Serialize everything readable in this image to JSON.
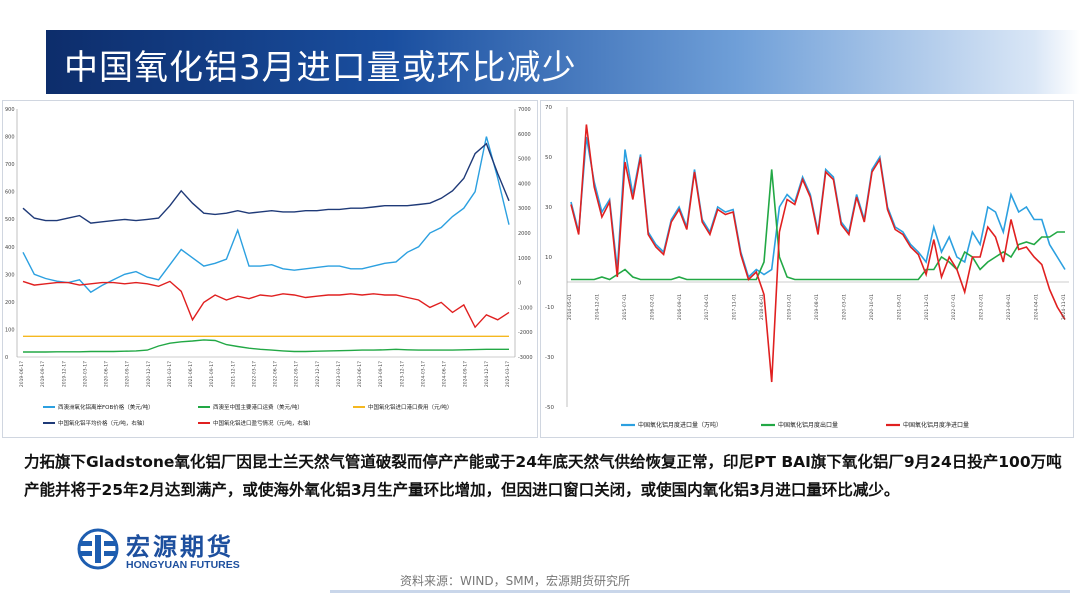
{
  "slide": {
    "title": "中国氧化铝3月进口量或环比减少",
    "body": "力拓旗下Gladstone氧化铝厂因昆士兰天然气管道破裂而停产产能或于24年底天然气供给恢复正常，印尼PT BAI旗下氧化铝厂9月24日投产100万吨产能并将于25年2月达到满产，或使海外氧化铝3月生产量环比增加，但因进口窗口关闭，或使国内氧化铝3月进口量环比减少。",
    "logo_cn": "宏源期货",
    "logo_en": "HONGYUAN FUTURES",
    "source": "资料来源：WIND，SMM，宏源期货研究所"
  },
  "colors": {
    "light_blue": "#2ca0e0",
    "navy": "#1f3a78",
    "green": "#22a845",
    "red": "#e02020",
    "orange": "#f5b820"
  },
  "chart_data": [
    {
      "type": "line",
      "left_axis": {
        "ylim": [
          0,
          900
        ],
        "ticks": [
          "0",
          "100",
          "200",
          "300",
          "400",
          "500",
          "600",
          "700",
          "800",
          "900"
        ]
      },
      "right_axis": {
        "ylim": [
          -3000,
          7000
        ],
        "ticks": [
          "-3000",
          "-2000",
          "-1000",
          "0",
          "1000",
          "2000",
          "3000",
          "4000",
          "5000",
          "6000",
          "7000"
        ]
      },
      "series": [
        {
          "name": "西澳洲氧化铝离岸FOB价格（美元/吨）",
          "axis": "left",
          "color": "#2ca0e0",
          "values": [
            380,
            300,
            285,
            275,
            270,
            280,
            235,
            260,
            280,
            300,
            310,
            290,
            280,
            335,
            390,
            360,
            330,
            340,
            355,
            460,
            330,
            330,
            335,
            320,
            315,
            320,
            325,
            330,
            330,
            320,
            320,
            330,
            340,
            345,
            380,
            400,
            450,
            470,
            510,
            540,
            600,
            800,
            650,
            480
          ]
        },
        {
          "name": "西澳至中国主要港口运费（美元/吨）",
          "axis": "left",
          "color": "#22a845",
          "values": [
            18,
            18,
            18,
            19,
            19,
            19,
            20,
            20,
            20,
            21,
            22,
            25,
            40,
            50,
            55,
            58,
            62,
            60,
            45,
            38,
            32,
            28,
            25,
            22,
            20,
            20,
            21,
            22,
            23,
            24,
            25,
            25,
            26,
            28,
            26,
            25,
            25,
            25,
            25,
            26,
            27,
            28,
            28,
            28
          ]
        },
        {
          "name": "中国氧化铝进口港口费用（元/吨）",
          "axis": "left",
          "color": "#f5b820",
          "values": [
            75,
            75,
            75,
            75,
            75,
            75,
            75,
            75,
            75,
            75,
            75,
            75,
            75,
            75,
            75,
            75,
            75,
            75,
            75,
            75,
            75,
            75,
            75,
            75,
            75,
            75,
            75,
            75,
            75,
            75,
            75,
            75,
            75,
            75,
            75,
            75,
            75,
            75,
            75,
            75,
            75,
            75,
            75,
            75
          ]
        },
        {
          "name": "中国氧化铝平均价格（元/吨，右轴）",
          "axis": "right",
          "color": "#1f3a78",
          "values": [
            3000,
            2600,
            2500,
            2500,
            2600,
            2700,
            2400,
            2450,
            2500,
            2550,
            2500,
            2550,
            2600,
            3100,
            3700,
            3200,
            2800,
            2750,
            2800,
            2900,
            2800,
            2850,
            2900,
            2850,
            2850,
            2900,
            2900,
            2950,
            2950,
            3000,
            3000,
            3050,
            3100,
            3100,
            3100,
            3150,
            3200,
            3400,
            3700,
            4200,
            5200,
            5600,
            4400,
            3300
          ]
        },
        {
          "name": "中国氧化铝进口盈亏情况（元/吨，右轴）",
          "axis": "right",
          "color": "#e02020",
          "values": [
            50,
            -100,
            -50,
            0,
            0,
            -100,
            -50,
            0,
            0,
            -50,
            0,
            -50,
            -150,
            50,
            -350,
            -1500,
            -800,
            -500,
            -700,
            -550,
            -650,
            -500,
            -550,
            -450,
            -500,
            -600,
            -550,
            -500,
            -500,
            -450,
            -500,
            -450,
            -500,
            -500,
            -600,
            -700,
            -1000,
            -800,
            -1200,
            -900,
            -1800,
            -1300,
            -1500,
            -1200
          ]
        }
      ],
      "x_labels": [
        "2019-06-17",
        "2019-09-17",
        "2019-12-17",
        "2020-03-17",
        "2020-06-17",
        "2020-09-17",
        "2020-12-17",
        "2021-03-17",
        "2021-06-17",
        "2021-09-17",
        "2021-12-17",
        "2022-03-17",
        "2022-06-17",
        "2022-09-17",
        "2022-12-17",
        "2023-03-17",
        "2023-06-17",
        "2023-09-17",
        "2023-12-17",
        "2024-03-17",
        "2024-06-17",
        "2024-09-17",
        "2024-12-17",
        "2025-03-17"
      ],
      "grid": false,
      "legend_placement": "bottom"
    },
    {
      "type": "line",
      "ylim": [
        -50,
        70
      ],
      "y_ticks": [
        "-50",
        "-30",
        "-10",
        "10",
        "30",
        "50",
        "70"
      ],
      "series": [
        {
          "name": "中国氧化铝月度进口量（万吨）",
          "color": "#2ca0e0",
          "values": [
            32,
            20,
            58,
            40,
            28,
            33,
            5,
            53,
            35,
            51,
            20,
            15,
            12,
            25,
            30,
            22,
            45,
            25,
            20,
            30,
            28,
            29,
            12,
            2,
            5,
            3,
            5,
            30,
            35,
            32,
            42,
            35,
            20,
            45,
            42,
            24,
            20,
            35,
            25,
            45,
            50,
            30,
            22,
            20,
            15,
            12,
            8,
            22,
            12,
            18,
            10,
            8,
            20,
            15,
            30,
            28,
            20,
            35,
            28,
            30,
            25,
            25,
            15,
            10,
            5
          ]
        },
        {
          "name": "中国氧化铝月度出口量",
          "color": "#22a845",
          "values": [
            1,
            1,
            1,
            1,
            2,
            1,
            3,
            5,
            2,
            1,
            1,
            1,
            1,
            1,
            2,
            1,
            1,
            1,
            1,
            1,
            1,
            1,
            1,
            1,
            1,
            8,
            45,
            10,
            2,
            1,
            1,
            1,
            1,
            1,
            1,
            1,
            1,
            1,
            1,
            1,
            1,
            1,
            1,
            1,
            1,
            1,
            5,
            5,
            10,
            8,
            5,
            12,
            10,
            5,
            8,
            10,
            12,
            10,
            15,
            16,
            15,
            18,
            18,
            20,
            20
          ]
        },
        {
          "name": "中国氧化铝月度净进口量",
          "color": "#e02020",
          "values": [
            31,
            19,
            63,
            38,
            26,
            32,
            2,
            48,
            33,
            50,
            19,
            14,
            11,
            24,
            29,
            21,
            44,
            24,
            19,
            29,
            27,
            28,
            11,
            1,
            4,
            -5,
            -40,
            20,
            33,
            31,
            41,
            34,
            19,
            44,
            41,
            23,
            19,
            34,
            24,
            44,
            49,
            29,
            21,
            19,
            14,
            11,
            3,
            17,
            2,
            10,
            5,
            -4,
            10,
            10,
            22,
            18,
            8,
            25,
            13,
            14,
            10,
            7,
            -3,
            -10,
            -15
          ]
        }
      ],
      "x_labels": [
        "2014-05-01",
        "2014-12-01",
        "2015-07-01",
        "2016-02-01",
        "2016-09-01",
        "2017-04-01",
        "2017-11-01",
        "2018-06-01",
        "2019-01-01",
        "2019-08-01",
        "2020-03-01",
        "2020-10-01",
        "2021-05-01",
        "2021-12-01",
        "2022-07-01",
        "2023-02-01",
        "2023-09-01",
        "2024-04-01",
        "2024-11-01"
      ],
      "grid": false,
      "legend_placement": "bottom"
    }
  ]
}
